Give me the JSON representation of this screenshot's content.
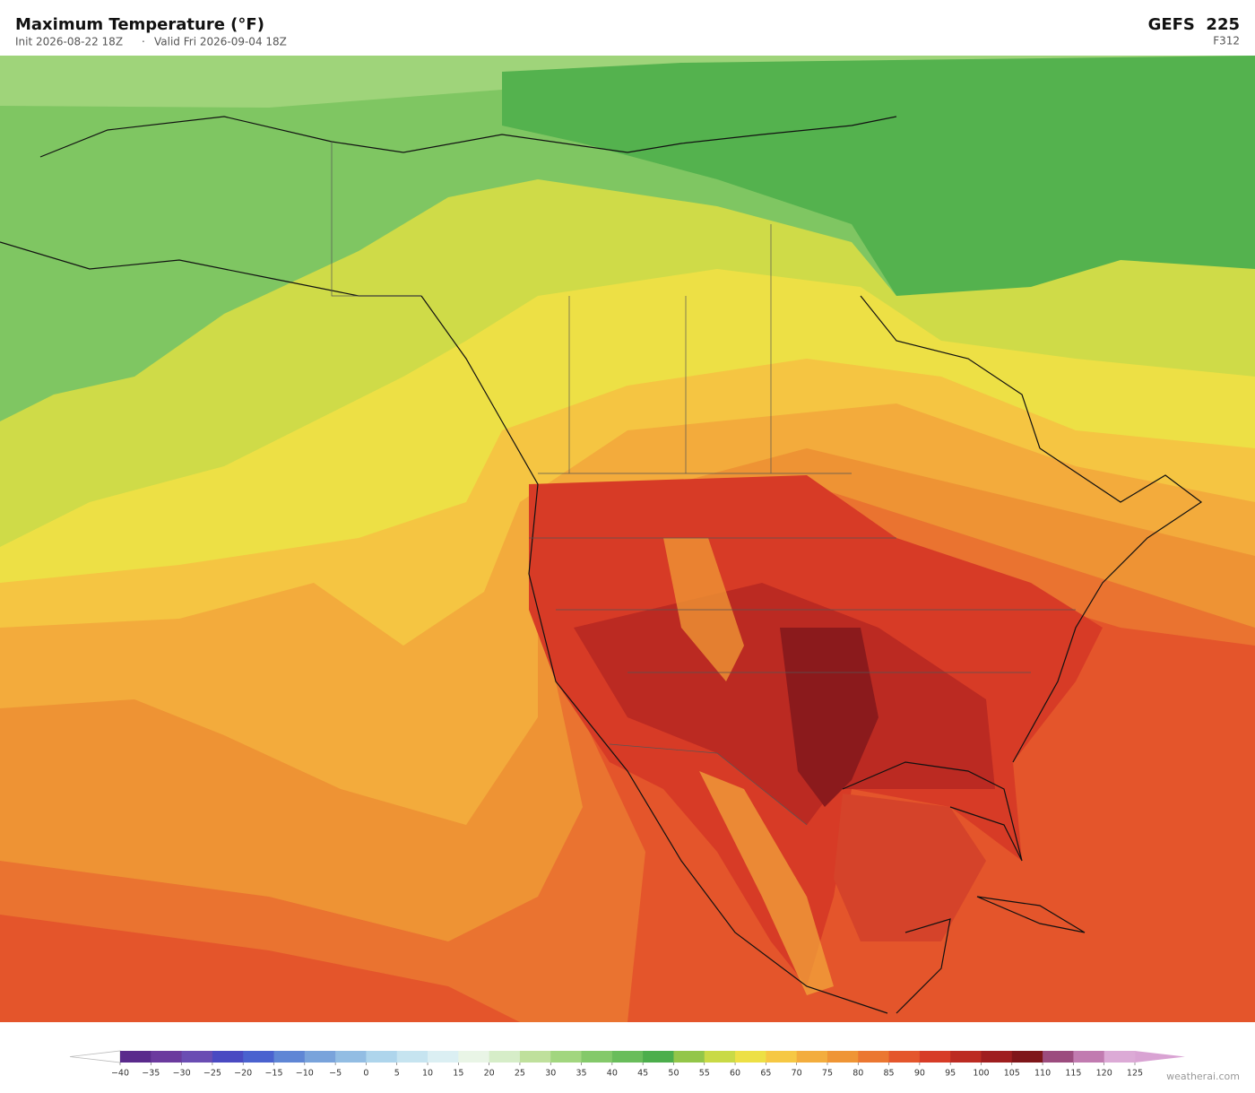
{
  "header": {
    "title": "Maximum Temperature  (°F)",
    "init": "Init 2026-08-22 18Z",
    "separator": "·",
    "valid": "Valid Fri 2026-09-04 18Z",
    "model": "GEFS  225",
    "forecast_hour": "F312"
  },
  "colorbar": {
    "ticks": [
      {
        "value": -40,
        "label": "−40"
      },
      {
        "value": -35,
        "label": "−35"
      },
      {
        "value": -30,
        "label": "−30"
      },
      {
        "value": -25,
        "label": "−25"
      },
      {
        "value": -20,
        "label": "−20"
      },
      {
        "value": -15,
        "label": "−15"
      },
      {
        "value": -10,
        "label": "−10"
      },
      {
        "value": -5,
        "label": "−5"
      },
      0,
      5,
      10,
      15,
      20,
      25,
      30,
      35,
      40,
      45,
      50,
      55,
      60,
      65,
      70,
      75,
      80,
      85,
      90,
      95,
      100,
      105,
      110,
      115,
      120,
      125
    ],
    "colors": [
      "#5a2a8c",
      "#6b3a9e",
      "#6a4db3",
      "#4a4ac2",
      "#4a62cf",
      "#5f86d5",
      "#79a3db",
      "#92bde3",
      "#aed5ec",
      "#c6e4f0",
      "#dbeff3",
      "#e9f5e6",
      "#d6edc8",
      "#bfe09c",
      "#a2d67f",
      "#84c96a",
      "#69bd5b",
      "#4cae4c",
      "#93c649",
      "#c9da46",
      "#ede045",
      "#f6c844",
      "#f3ad3d",
      "#ef9535",
      "#eb7731",
      "#e4562c",
      "#d73c27",
      "#bc2b22",
      "#9f1e1f",
      "#7f1619",
      "#9c4c7e",
      "#c17bb0",
      "#dcaad6"
    ],
    "under_color": "#ffffff",
    "over_color": "#d9a3d3"
  },
  "watermark": "weatherai.com"
}
